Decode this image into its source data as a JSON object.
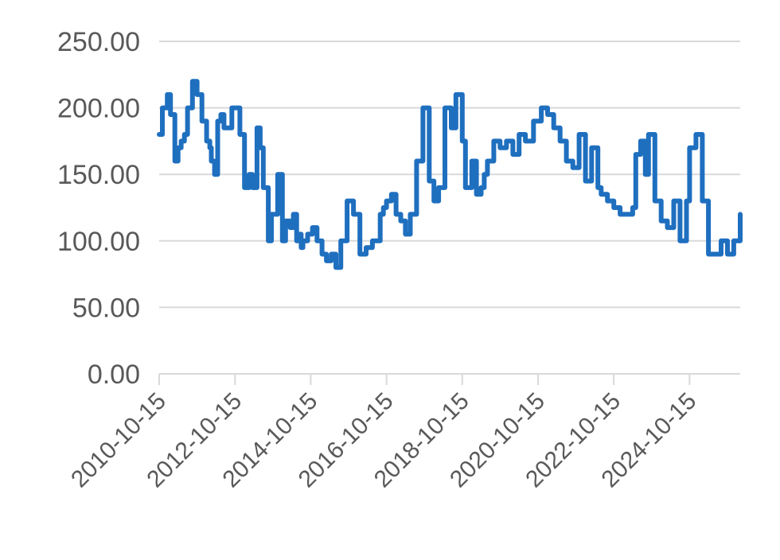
{
  "chart_data": {
    "type": "line",
    "title": "",
    "xlabel": "",
    "ylabel": "",
    "ylim": [
      0,
      250
    ],
    "y_ticks": [
      "0.00",
      "50.00",
      "100.00",
      "150.00",
      "200.00",
      "250.00"
    ],
    "x_ticks": [
      "2010-10-15",
      "2012-10-15",
      "2014-10-15",
      "2016-10-15",
      "2018-10-15",
      "2020-10-15",
      "2022-10-15",
      "2024-10-15"
    ],
    "x_range": [
      "2010-10-15",
      "2026-02-15"
    ],
    "grid": true,
    "legend": "none",
    "color": "#1f6fbf",
    "series": [
      {
        "name": "",
        "step": true,
        "x": [
          "2010-10-15",
          "2010-11-15",
          "2011-01-01",
          "2011-02-01",
          "2011-03-15",
          "2011-04-15",
          "2011-05-15",
          "2011-06-15",
          "2011-07-15",
          "2011-09-01",
          "2011-10-15",
          "2011-12-01",
          "2012-01-15",
          "2012-02-15",
          "2012-03-01",
          "2012-04-01",
          "2012-05-01",
          "2012-06-01",
          "2012-07-01",
          "2012-09-15",
          "2012-10-15",
          "2012-12-01",
          "2013-01-15",
          "2013-03-01",
          "2013-04-01",
          "2013-05-15",
          "2013-06-15",
          "2013-07-15",
          "2013-09-01",
          "2013-10-01",
          "2013-12-01",
          "2014-01-15",
          "2014-02-15",
          "2014-04-01",
          "2014-05-01",
          "2014-06-01",
          "2014-07-01",
          "2014-07-15",
          "2014-08-01",
          "2014-09-15",
          "2014-11-01",
          "2014-12-15",
          "2015-02-01",
          "2015-03-15",
          "2015-05-01",
          "2015-06-15",
          "2015-08-01",
          "2015-10-01",
          "2015-12-01",
          "2016-02-01",
          "2016-04-01",
          "2016-06-01",
          "2016-08-15",
          "2016-09-15",
          "2016-10-15",
          "2016-12-01",
          "2017-01-15",
          "2017-03-01",
          "2017-04-15",
          "2017-06-01",
          "2017-08-01",
          "2017-10-01",
          "2017-12-01",
          "2018-01-15",
          "2018-03-01",
          "2018-05-01",
          "2018-07-01",
          "2018-08-15",
          "2018-10-15",
          "2018-11-15",
          "2019-01-15",
          "2019-03-01",
          "2019-04-15",
          "2019-05-15",
          "2019-06-15",
          "2019-08-15",
          "2019-10-15",
          "2019-12-15",
          "2020-02-15",
          "2020-04-15",
          "2020-06-15",
          "2020-09-01",
          "2020-11-15",
          "2021-01-15",
          "2021-03-15",
          "2021-05-15",
          "2021-07-15",
          "2021-09-15",
          "2021-11-15",
          "2022-01-15",
          "2022-03-15",
          "2022-05-15",
          "2022-06-15",
          "2022-08-15",
          "2022-10-15",
          "2022-12-15",
          "2023-02-15",
          "2023-04-15",
          "2023-05-15",
          "2023-07-01",
          "2023-08-15",
          "2023-09-15",
          "2023-11-15",
          "2024-01-15",
          "2024-03-15",
          "2024-05-15",
          "2024-07-15",
          "2024-09-15",
          "2024-10-15",
          "2024-12-15",
          "2025-02-15",
          "2025-04-15",
          "2025-06-15",
          "2025-08-15",
          "2025-10-15",
          "2025-12-15",
          "2026-02-15"
        ],
        "y": [
          180,
          200,
          210,
          195,
          160,
          170,
          175,
          180,
          200,
          220,
          210,
          190,
          175,
          170,
          160,
          150,
          190,
          195,
          185,
          200,
          200,
          180,
          140,
          150,
          140,
          185,
          170,
          140,
          100,
          120,
          150,
          100,
          115,
          110,
          120,
          100,
          105,
          95,
          100,
          105,
          110,
          100,
          90,
          85,
          90,
          80,
          100,
          130,
          120,
          90,
          95,
          100,
          120,
          125,
          130,
          135,
          120,
          115,
          105,
          120,
          160,
          200,
          145,
          130,
          140,
          200,
          185,
          210,
          175,
          140,
          160,
          135,
          140,
          150,
          160,
          175,
          170,
          175,
          165,
          180,
          175,
          190,
          200,
          195,
          185,
          175,
          160,
          155,
          180,
          145,
          170,
          140,
          135,
          130,
          125,
          120,
          120,
          125,
          165,
          175,
          150,
          180,
          130,
          115,
          110,
          130,
          100,
          130,
          170,
          180,
          130,
          90,
          90,
          100,
          90,
          100,
          120
        ]
      }
    ]
  }
}
